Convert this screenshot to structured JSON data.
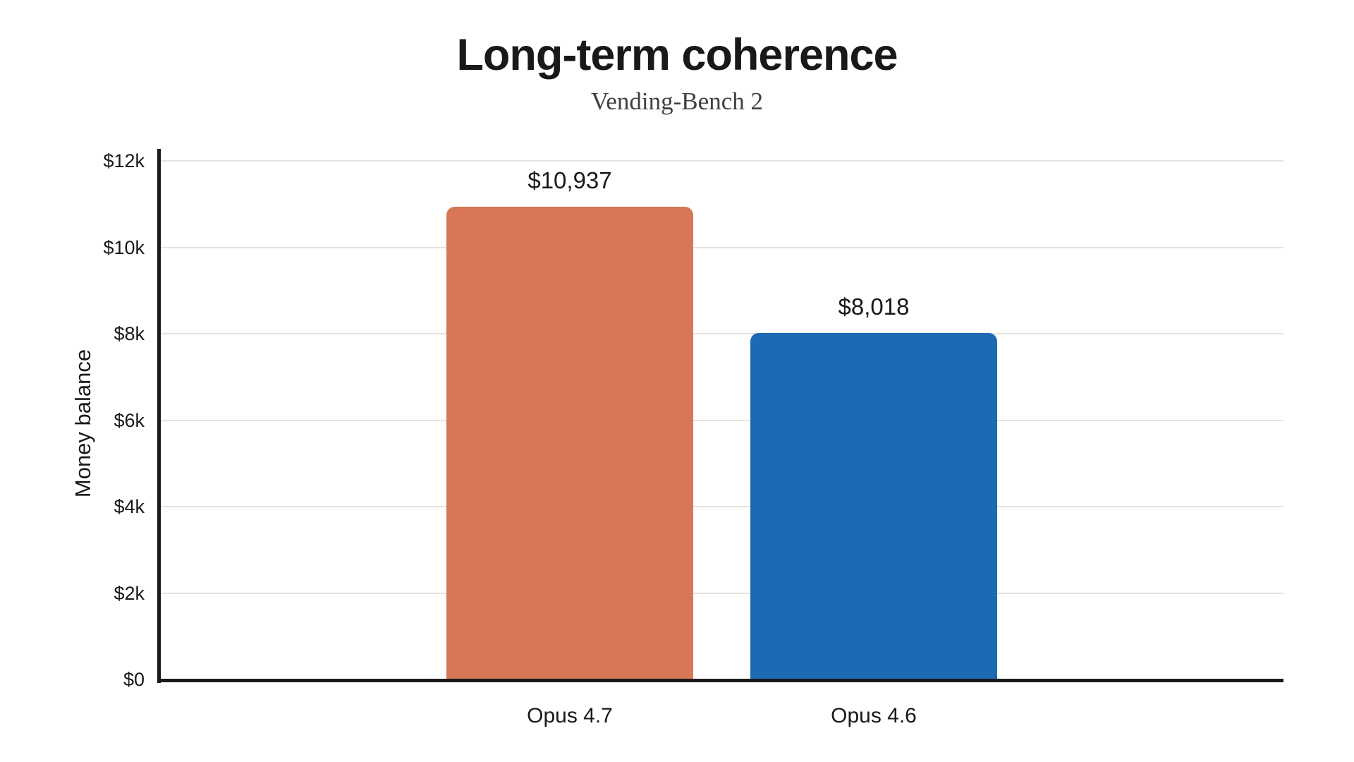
{
  "chart_data": {
    "type": "bar",
    "title": "Long-term coherence",
    "subtitle": "Vending-Bench 2",
    "ylabel": "Money balance",
    "categories": [
      "Opus 4.7",
      "Opus 4.6"
    ],
    "values": [
      10937,
      8018
    ],
    "value_labels": [
      "$10,937",
      "$8,018"
    ],
    "bar_colors": [
      "#D77757",
      "#1C69B4"
    ],
    "ylim": [
      0,
      12000
    ],
    "ytick_values": [
      0,
      2000,
      4000,
      6000,
      8000,
      10000,
      12000
    ],
    "ytick_labels": [
      "$0",
      "$2k",
      "$4k",
      "$6k",
      "$8k",
      "$10k",
      "$12k"
    ],
    "grid": "horizontal-only",
    "legend": "none",
    "gridline_color": "#E6E3DC",
    "axis_color": "#1A1A18",
    "background": "#FFFFFF"
  }
}
